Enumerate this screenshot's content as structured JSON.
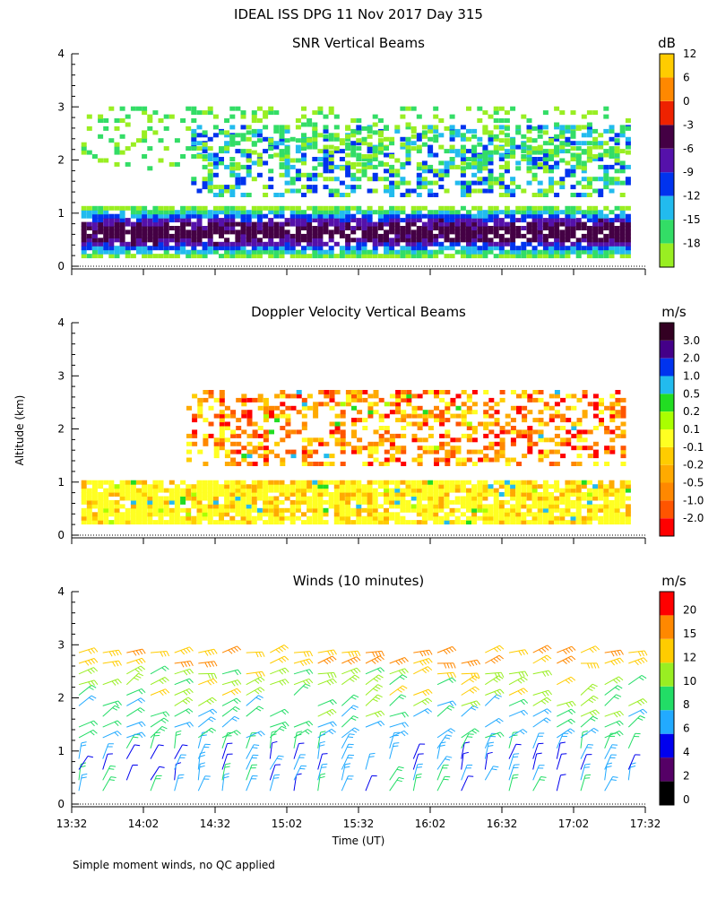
{
  "page_title": "IDEAL ISS DPG  11 Nov 2017 Day 315",
  "footnote": "Simple moment winds, no QC applied",
  "chart_data": [
    {
      "type": "heatmap",
      "title": "SNR Vertical Beams",
      "ylabel": "",
      "ylim": [
        0,
        4
      ],
      "yticks": [
        "0",
        "1",
        "2",
        "3",
        "4"
      ],
      "xlim_minutes_since_1332": [
        0,
        240
      ],
      "colorbar": {
        "unit": "dB",
        "labels": [
          "-18",
          "-15",
          "-12",
          "-9",
          "-6",
          "-3",
          "0",
          "6",
          "12"
        ],
        "colors": [
          "#99ee22",
          "#33dd66",
          "#22bbee",
          "#0033ee",
          "#5511aa",
          "#440044",
          "#ee2200",
          "#ff8800",
          "#ffcc00"
        ]
      },
      "layers": [
        {
          "name": "low-level echo",
          "start_min": 4,
          "end_min": 232,
          "bottom_km": 0.15,
          "top_km": 1.05
        },
        {
          "name": "elevated layer",
          "start_min": 50,
          "end_min": 232,
          "bottom_km": 1.3,
          "top_km": 2.6
        },
        {
          "name": "scattered upper echoes",
          "start_min": 4,
          "end_min": 232,
          "bottom_km": 1.8,
          "top_km": 3.0
        }
      ]
    },
    {
      "type": "heatmap",
      "title": "Doppler Velocity Vertical Beams",
      "ylabel": "Altitude (km)",
      "ylim": [
        0,
        4
      ],
      "yticks": [
        "0",
        "1",
        "2",
        "3",
        "4"
      ],
      "xlim_minutes_since_1332": [
        0,
        240
      ],
      "colorbar": {
        "unit": "m/s",
        "labels": [
          "-2.0",
          "-1.0",
          "-0.5",
          "-0.2",
          "-0.1",
          "0.1",
          "0.2",
          "0.5",
          "1.0",
          "2.0",
          "3.0"
        ],
        "colors": [
          "#ff0000",
          "#ff5500",
          "#ff8800",
          "#ffaa00",
          "#ffcc00",
          "#ffff22",
          "#aaff00",
          "#22dd22",
          "#22bbee",
          "#0033ee",
          "#440088",
          "#330022"
        ]
      },
      "layers": [
        {
          "name": "low-level downdraft",
          "start_min": 4,
          "end_min": 232,
          "bottom_km": 0.2,
          "top_km": 1.0,
          "dominant_ms": -0.1
        },
        {
          "name": "elevated layer",
          "start_min": 48,
          "end_min": 232,
          "bottom_km": 1.3,
          "top_km": 2.7,
          "dominant_ms": -0.2
        }
      ]
    },
    {
      "type": "scatter",
      "title": "Winds (10 minutes)",
      "ylabel": "",
      "ylim": [
        0,
        4
      ],
      "yticks": [
        "0",
        "1",
        "2",
        "3",
        "4"
      ],
      "xlabel": "Time (UT)",
      "xticks": [
        "13:32",
        "14:02",
        "14:32",
        "15:02",
        "15:32",
        "16:02",
        "16:32",
        "17:02",
        "17:32"
      ],
      "xlim_minutes_since_1332": [
        0,
        240
      ],
      "colorbar": {
        "unit": "m/s",
        "labels": [
          "0",
          "2",
          "4",
          "6",
          "8",
          "10",
          "12",
          "15",
          "20"
        ],
        "colors": [
          "#000000",
          "#550066",
          "#0000ee",
          "#22aaff",
          "#22dd66",
          "#99ee22",
          "#ffcc00",
          "#ff8800",
          "#ff0000"
        ]
      },
      "profile_times_min": [
        0,
        10,
        20,
        30,
        40,
        50,
        60,
        70,
        80,
        90,
        100,
        110,
        120,
        130,
        140,
        150,
        160,
        170,
        180,
        190,
        200,
        210,
        220,
        230
      ],
      "speed_by_altitude": [
        {
          "altitude_km": 0.3,
          "speed_ms": 7
        },
        {
          "altitude_km": 0.8,
          "speed_ms": 6
        },
        {
          "altitude_km": 1.3,
          "speed_ms": 8
        },
        {
          "altitude_km": 1.8,
          "speed_ms": 9
        },
        {
          "altitude_km": 2.3,
          "speed_ms": 11
        },
        {
          "altitude_km": 2.8,
          "speed_ms": 15
        }
      ]
    }
  ]
}
